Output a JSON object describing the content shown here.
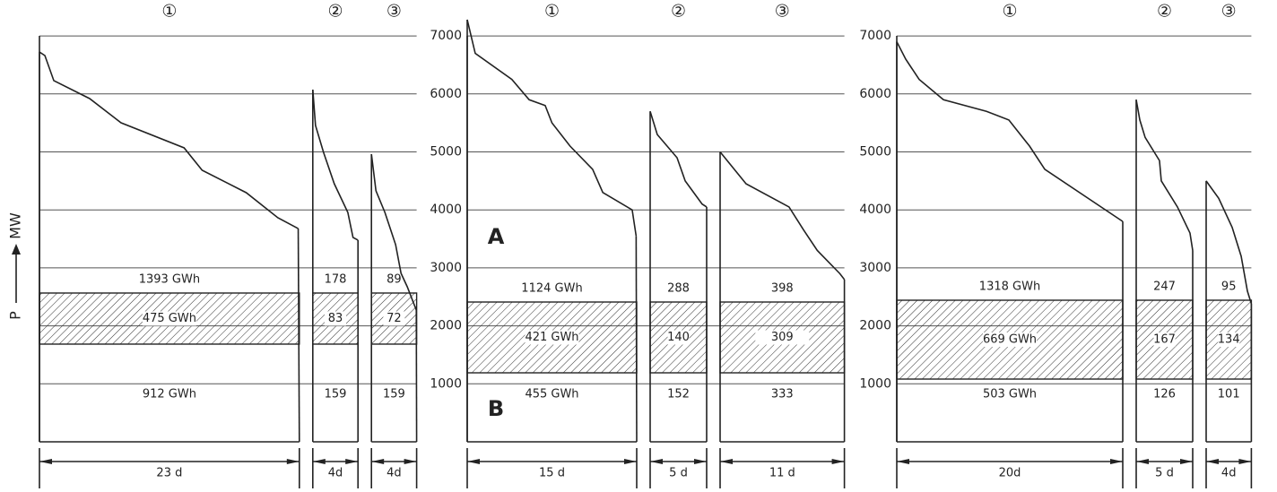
{
  "axis_label": {
    "symbol": "P",
    "unit": "MW"
  },
  "yticks": [
    1000,
    2000,
    3000,
    4000,
    5000,
    6000,
    7000
  ],
  "panels": [
    {
      "tick_labels": false,
      "band": [
        1685,
        2566
      ],
      "annotations": [],
      "sections": [
        {
          "marker": "①",
          "energy_top": "1393 GWh",
          "energy_band": "475 GWh",
          "energy_bottom": "912 GWh",
          "duration": {
            "value": 23,
            "label": "23 d"
          },
          "days": [
            0,
            0.48,
            1.27,
            4.44,
            7.22,
            12.8,
            14.4,
            18.3,
            21.1,
            22.9
          ],
          "mw": [
            6723,
            6662,
            6229,
            5920,
            5502,
            5070,
            4683,
            4297,
            3864,
            3678
          ]
        },
        {
          "marker": "②",
          "energy_top": "178",
          "energy_band": "83",
          "energy_bottom": "159",
          "duration": {
            "value": 4,
            "label": "4d"
          },
          "days": [
            0,
            0.24,
            0.95,
            1.9,
            3.1,
            3.56,
            4
          ],
          "mw": [
            6074,
            5456,
            4992,
            4451,
            3957,
            3524,
            3478
          ]
        },
        {
          "marker": "③",
          "energy_top": "89",
          "energy_band": "72",
          "energy_bottom": "159",
          "duration": {
            "value": 4,
            "label": "4d"
          },
          "days": [
            0,
            0.4,
            1.19,
            2.14,
            2.62,
            3.17,
            3.97
          ],
          "mw": [
            4961,
            4328,
            3957,
            3400,
            2906,
            2674,
            2272
          ]
        }
      ]
    },
    {
      "tick_labels": true,
      "band": [
        1190,
        2411
      ],
      "annotations": [
        "A",
        "B"
      ],
      "sections": [
        {
          "marker": "①",
          "energy_top": "1124 GWh",
          "energy_band": "421 GWh",
          "energy_bottom": "455 GWh",
          "duration": {
            "value": 15,
            "label": "15 d"
          },
          "days": [
            0,
            0.71,
            3.95,
            5.48,
            6.9,
            7.5,
            9.1,
            11.1,
            12,
            14.6,
            14.95
          ],
          "mw": [
            7280,
            6700,
            6250,
            5900,
            5800,
            5500,
            5100,
            4700,
            4300,
            4000,
            3550
          ]
        },
        {
          "marker": "②",
          "energy_top": "288",
          "energy_band": "140",
          "energy_bottom": "152",
          "duration": {
            "value": 5,
            "label": "5 d"
          },
          "days": [
            0,
            0.63,
            2.38,
            3.1,
            4.6,
            5
          ],
          "mw": [
            5700,
            5300,
            4900,
            4500,
            4100,
            4050
          ]
        },
        {
          "marker": "③",
          "energy_top": "398",
          "energy_band": "309",
          "energy_bottom": "333",
          "duration": {
            "value": 11,
            "label": "11 d"
          },
          "days": [
            0,
            2.3,
            6.1,
            7.4,
            8.6,
            10.6,
            11
          ],
          "mw": [
            5000,
            4450,
            4050,
            3650,
            3300,
            2900,
            2800
          ]
        }
      ]
    },
    {
      "tick_labels": true,
      "band": [
        1082,
        2442
      ],
      "annotations": [],
      "sections": [
        {
          "marker": "①",
          "energy_top": "1318 GWh",
          "energy_band": "669 GWh",
          "energy_bottom": "503 GWh",
          "duration": {
            "value": 20,
            "label": "20d"
          },
          "days": [
            0,
            0.79,
            1.98,
            4.13,
            7.94,
            9.92,
            11.75,
            13.1,
            20
          ],
          "mw": [
            6900,
            6600,
            6250,
            5900,
            5700,
            5550,
            5100,
            4700,
            3800
          ]
        },
        {
          "marker": "②",
          "energy_top": "247",
          "energy_band": "167",
          "energy_bottom": "126",
          "duration": {
            "value": 5,
            "label": "5 d"
          },
          "days": [
            0,
            0.32,
            0.79,
            2.06,
            2.22,
            3.65,
            4.76,
            5
          ],
          "mw": [
            5900,
            5550,
            5250,
            4850,
            4500,
            4050,
            3600,
            3300
          ]
        },
        {
          "marker": "③",
          "energy_top": "95",
          "energy_band": "134",
          "energy_bottom": "101",
          "duration": {
            "value": 4,
            "label": "4d"
          },
          "days": [
            0,
            1.11,
            2.3,
            3.1,
            3.65,
            4
          ],
          "mw": [
            4500,
            4200,
            3700,
            3200,
            2600,
            2380
          ]
        }
      ]
    }
  ]
}
